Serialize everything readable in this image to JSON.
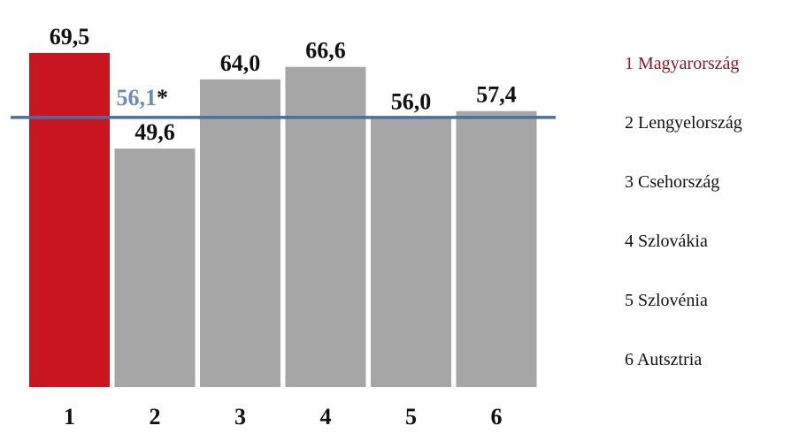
{
  "chart_data": {
    "type": "bar",
    "categories": [
      "1",
      "2",
      "3",
      "4",
      "5",
      "6"
    ],
    "values": [
      69.5,
      49.6,
      64.0,
      66.6,
      56.0,
      57.4
    ],
    "value_labels": [
      "69,5",
      "49,6",
      "64,0",
      "66,6",
      "56,0",
      "57,4"
    ],
    "highlight_index": 0,
    "ylim": [
      0,
      75
    ],
    "reference_line": {
      "value": 56.1,
      "label": "56,1",
      "marker": "*"
    },
    "legend": [
      "1 Magyarország",
      "2 Lengyelország",
      "3 Csehország",
      "4 Szlovákia",
      "5 Szlovénia",
      "6 Autsztria"
    ],
    "legend_placement": "right",
    "grid": false,
    "title": "",
    "xlabel": "",
    "ylabel": ""
  },
  "colors": {
    "highlight_bar": "#c8151f",
    "bar": "#a6a6a6",
    "reference_line": "#4a6fa5",
    "reference_label": "#6b8db3",
    "legend_highlight": "#8a1a2a",
    "text": "#111111"
  }
}
